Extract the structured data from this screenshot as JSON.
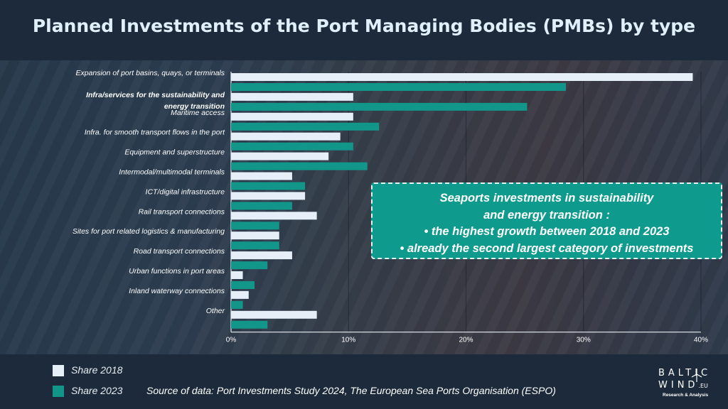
{
  "title": "Planned Investments of the Port Managing Bodies (PMBs) by type",
  "chart_data": {
    "type": "bar",
    "orientation": "horizontal",
    "categories": [
      "Expansion of port basins, quays, or terminals",
      "Infra/services for the sustainability and energy transition",
      "Maritime access",
      "Infra. for smooth transport flows in the port",
      "Equipment and superstructure",
      "Intermodal/multimodal terminals",
      "ICT/digital infrastructure",
      "Rail transport connections",
      "Sites for port related logistics & manufacturing",
      "Road transport connections",
      "Urban functions in port areas",
      "Inland waterway connections",
      "Other"
    ],
    "category_lines": [
      [
        "Expansion of port basins, quays, or terminals"
      ],
      [
        "Infra/services for the sustainability and",
        "energy transition"
      ],
      [
        "Maritime access"
      ],
      [
        "Infra. for smooth transport flows in the port"
      ],
      [
        "Equipment and superstructure"
      ],
      [
        "Intermodal/multimodal terminals"
      ],
      [
        "ICT/digital infrastructure"
      ],
      [
        "Rail transport connections"
      ],
      [
        "Sites for port related logistics & manufacturing"
      ],
      [
        "Road transport connections"
      ],
      [
        "Urban functions in port areas"
      ],
      [
        "Inland waterway connections"
      ],
      [
        "Other"
      ]
    ],
    "highlighted_category": "Infra/services for the sustainability and energy transition",
    "series": [
      {
        "name": "Share 2018",
        "color": "#e6eff8",
        "values": [
          39.3,
          10.4,
          10.4,
          9.3,
          8.3,
          5.2,
          6.3,
          7.3,
          4.1,
          5.2,
          1.0,
          1.5,
          7.3
        ]
      },
      {
        "name": "Share 2023",
        "color": "#12968a",
        "values": [
          28.5,
          25.2,
          12.6,
          10.4,
          11.6,
          6.3,
          5.2,
          4.1,
          4.1,
          3.1,
          2.0,
          1.0,
          3.1
        ]
      }
    ],
    "xlim": [
      0,
      40
    ],
    "xticks": [
      0,
      10,
      20,
      30,
      40
    ],
    "tick_labels": [
      "0%",
      "10%",
      "20%",
      "30%",
      "40%"
    ],
    "grid": "vertical",
    "legend_position": "bottom-left"
  },
  "callout": {
    "lines": [
      "Seaports investments in sustainability",
      "and energy transition :",
      "• the highest growth between 2018 and 2023",
      "• already the second largest category of investments"
    ]
  },
  "legend": [
    {
      "label": "Share 2018",
      "color": "#e6eff8"
    },
    {
      "label": "Share 2023",
      "color": "#12968a"
    }
  ],
  "source": "Source of data: Port Investments Study 2024, The European Sea Ports Organisation (ESPO)",
  "logo": {
    "line1": "BALTIC",
    "line2": "WIND",
    "suffix": ".EU",
    "tagline": "Research & Analysis"
  }
}
